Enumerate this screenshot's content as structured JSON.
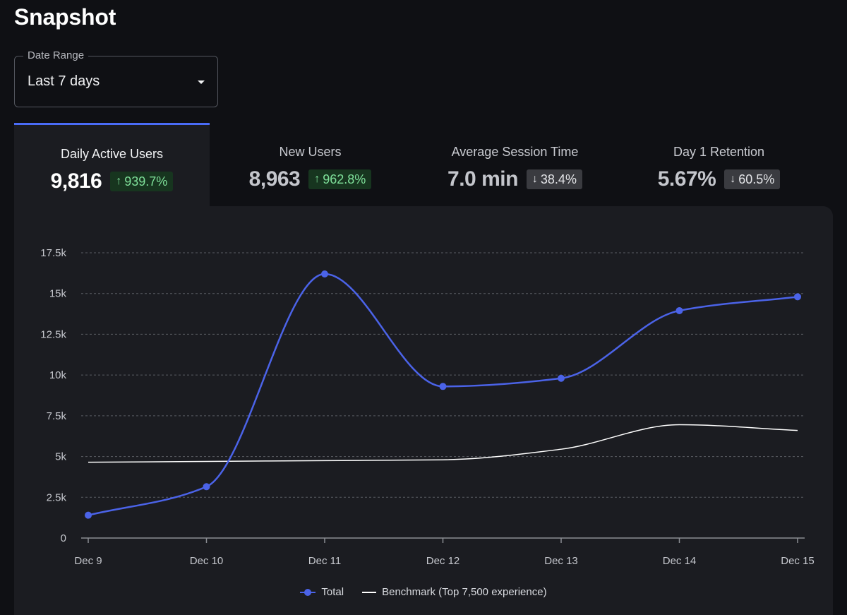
{
  "page": {
    "title": "Snapshot"
  },
  "date_range": {
    "label": "Date Range",
    "value": "Last 7 days"
  },
  "metrics": [
    {
      "title": "Daily Active Users",
      "value": "9,816",
      "change": "939.7%",
      "direction": "up",
      "active": true
    },
    {
      "title": "New Users",
      "value": "8,963",
      "change": "962.8%",
      "direction": "up",
      "active": false
    },
    {
      "title": "Average Session Time",
      "value": "7.0 min",
      "change": "38.4%",
      "direction": "down",
      "active": false
    },
    {
      "title": "Day 1 Retention",
      "value": "5.67%",
      "change": "60.5%",
      "direction": "down",
      "active": false
    }
  ],
  "colors": {
    "total": "#4b63e8",
    "benchmark": "#ffffff",
    "up_badge": "#7fe09a",
    "accent": "#4a6cf7"
  },
  "chart_data": {
    "type": "line",
    "categories": [
      "Dec 9",
      "Dec 10",
      "Dec 11",
      "Dec 12",
      "Dec 13",
      "Dec 14",
      "Dec 15"
    ],
    "series": [
      {
        "name": "Total",
        "values": [
          1400,
          3150,
          16200,
          9300,
          9800,
          13950,
          14800
        ],
        "markers": true
      },
      {
        "name": "Benchmark (Top 7,500 experience)",
        "values": [
          4650,
          4700,
          4750,
          4800,
          5450,
          6950,
          6600
        ],
        "markers": false
      }
    ],
    "y_ticks": [
      "0",
      "2.5k",
      "5k",
      "7.5k",
      "10k",
      "12.5k",
      "15k",
      "17.5k"
    ],
    "ylim": [
      0,
      17500
    ],
    "grid": true,
    "legend": "bottom-center"
  }
}
